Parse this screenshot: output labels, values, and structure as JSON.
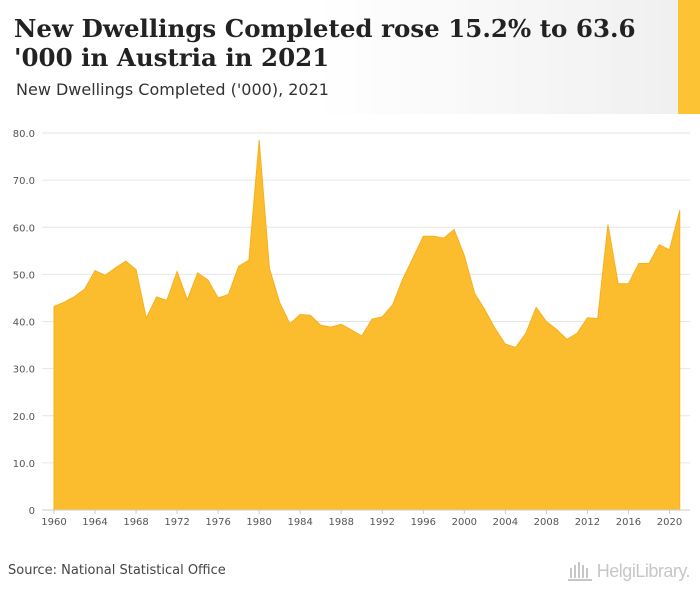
{
  "header": {
    "title": "New Dwellings Completed rose 15.2% to 63.6 '000 in Austria in 2021",
    "subtitle": "New Dwellings Completed ('000), 2021"
  },
  "footer": {
    "source": "Source: National Statistical Office",
    "logo_text": "HelgiLibrary."
  },
  "colors": {
    "area_fill": "#fbbc2e",
    "area_stroke": "#f6b01e",
    "accent": "#fcc434",
    "grid": "#e6e6e6",
    "axis_text": "#555555"
  },
  "chart_data": {
    "type": "area",
    "title": "",
    "xlabel": "",
    "ylabel": "",
    "x": [
      1960,
      1961,
      1962,
      1963,
      1964,
      1965,
      1966,
      1967,
      1968,
      1969,
      1970,
      1971,
      1972,
      1973,
      1974,
      1975,
      1976,
      1977,
      1978,
      1979,
      1980,
      1981,
      1982,
      1983,
      1984,
      1985,
      1986,
      1987,
      1988,
      1989,
      1990,
      1991,
      1992,
      1993,
      1994,
      1995,
      1996,
      1997,
      1998,
      1999,
      2000,
      2001,
      2002,
      2003,
      2004,
      2005,
      2006,
      2007,
      2008,
      2009,
      2010,
      2011,
      2012,
      2013,
      2014,
      2015,
      2016,
      2017,
      2018,
      2019,
      2020,
      2021
    ],
    "series": [
      {
        "values": [
          43.2,
          44.1,
          45.3,
          46.9,
          50.8,
          49.8,
          51.4,
          52.8,
          51.0,
          40.7,
          45.2,
          44.5,
          50.6,
          44.6,
          50.3,
          48.8,
          45.0,
          45.7,
          51.7,
          53.0,
          78.5,
          51.3,
          44.0,
          39.5,
          41.5,
          41.3,
          39.2,
          38.8,
          39.4,
          38.2,
          36.9,
          40.5,
          41.0,
          43.5,
          49.0,
          53.5,
          58.1,
          58.1,
          57.7,
          59.5,
          54.0,
          46.0,
          42.5,
          38.5,
          35.2,
          34.5,
          37.5,
          43.0,
          40.0,
          38.3,
          36.2,
          37.5,
          40.8,
          40.6,
          60.6,
          48.0,
          48.0,
          52.3,
          52.3,
          56.3,
          55.2,
          63.6
        ]
      }
    ],
    "ylim": [
      0,
      80
    ],
    "yticks": [
      0,
      10,
      20,
      30,
      40,
      50,
      60,
      70,
      80
    ],
    "ytick_labels": [
      "0",
      "10.0",
      "20.0",
      "30.0",
      "40.0",
      "50.0",
      "60.0",
      "70.0",
      "80.0"
    ],
    "xtick_labels": [
      "1960",
      "1964",
      "1968",
      "1972",
      "1976",
      "1980",
      "1984",
      "1988",
      "1992",
      "1996",
      "2000",
      "2004",
      "2008",
      "2012",
      "2016",
      "2020"
    ],
    "grid": true
  }
}
